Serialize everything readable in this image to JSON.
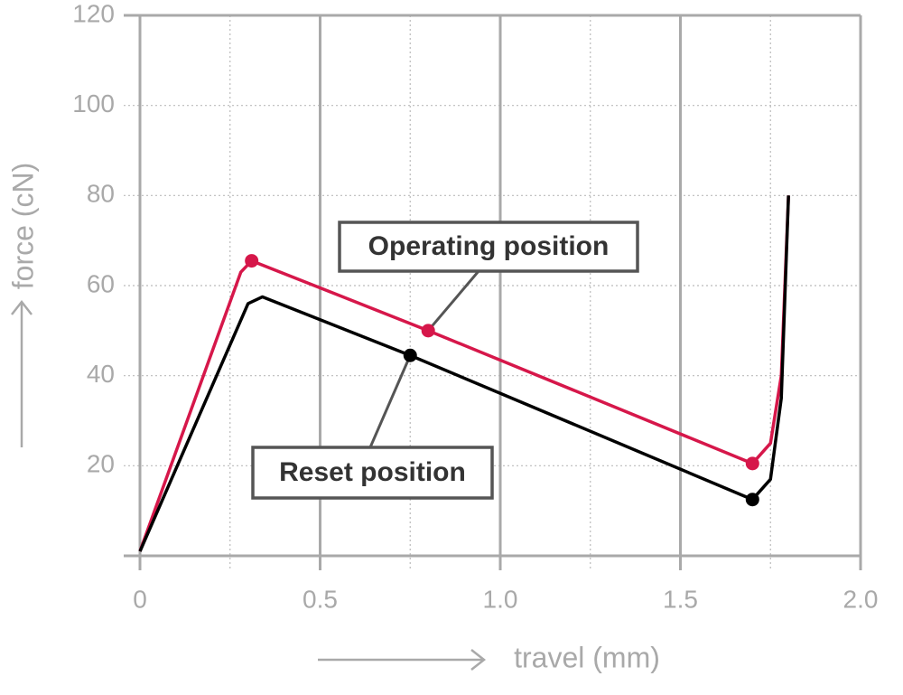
{
  "chart_data": {
    "type": "line",
    "x_label": "travel (mm)",
    "y_label": "force (cN)",
    "xlim": [
      0,
      2
    ],
    "ylim": [
      0,
      120
    ],
    "xticks": [
      0,
      0.5,
      {
        "value": 1,
        "label": "1.0"
      },
      1.5,
      {
        "value": 2,
        "label": "2.0"
      }
    ],
    "x_minor_grid": [
      0.25,
      0.75,
      1.25,
      1.75
    ],
    "yticks": [
      20,
      40,
      60,
      80,
      100,
      120
    ],
    "grid": true,
    "series": [
      {
        "name": "Operating position",
        "color": "#d6174a",
        "x": [
          0,
          0.28,
          0.31,
          0.8,
          1.7,
          1.75,
          1.78,
          1.8
        ],
        "values": [
          1,
          63,
          65.5,
          50,
          20.5,
          25,
          40,
          80
        ],
        "markers": [
          2,
          3,
          4
        ]
      },
      {
        "name": "Reset position",
        "color": "#000000",
        "x": [
          0,
          0.3,
          0.34,
          0.75,
          1.7,
          1.75,
          1.78,
          1.8
        ],
        "values": [
          1,
          56,
          57.5,
          44.5,
          12.5,
          17,
          35,
          80
        ],
        "markers": [
          3,
          4
        ]
      }
    ]
  }
}
